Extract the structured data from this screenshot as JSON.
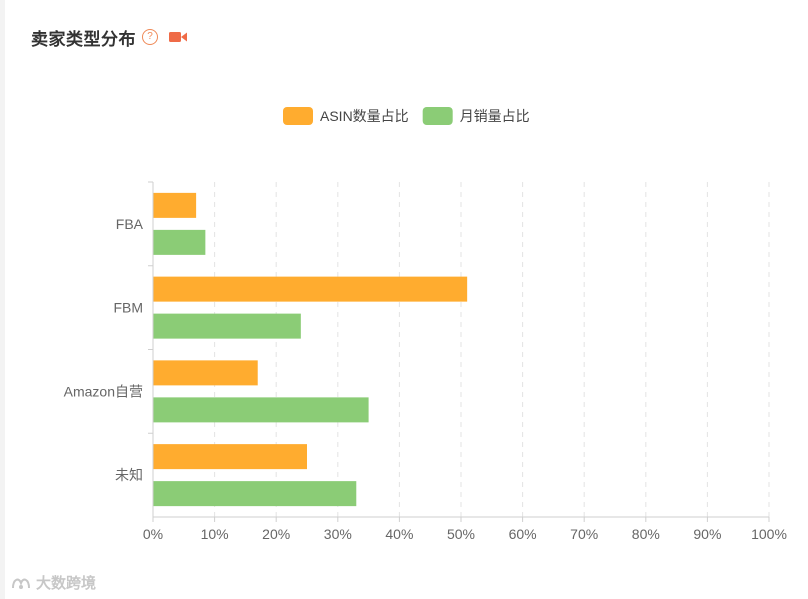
{
  "header": {
    "title": "卖家类型分布",
    "help_glyph": "?"
  },
  "icons": {
    "help": "question-circle-icon",
    "video": "video-camera-icon",
    "accent": "#ef6b47"
  },
  "watermark": {
    "text": "大数跨境"
  },
  "chart_data": {
    "type": "bar",
    "orientation": "horizontal",
    "categories": [
      "FBA",
      "FBM",
      "Amazon自营",
      "未知"
    ],
    "series": [
      {
        "name": "ASIN数量占比",
        "color": "#ffac2f",
        "values": [
          7,
          51,
          17,
          25
        ]
      },
      {
        "name": "月销量占比",
        "color": "#8bcc76",
        "values": [
          8.5,
          24,
          35,
          33
        ]
      }
    ],
    "x_ticks": [
      "0%",
      "10%",
      "20%",
      "30%",
      "40%",
      "50%",
      "60%",
      "70%",
      "80%",
      "90%",
      "100%"
    ],
    "xlim": [
      0,
      100
    ],
    "grid": true,
    "legend": "top-center"
  }
}
